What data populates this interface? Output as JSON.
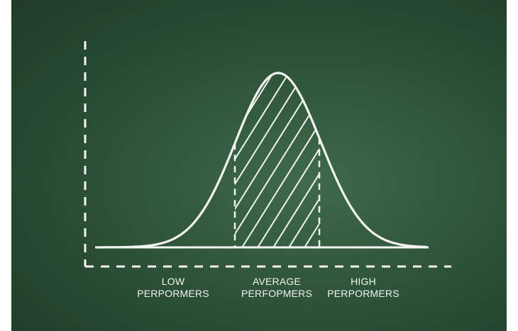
{
  "diagram": {
    "labels": {
      "low": {
        "line1": "LOW",
        "line2": "PERPORMERS"
      },
      "average": {
        "line1": "AVERAGE",
        "line2": "PERFOPMERS"
      },
      "high": {
        "line1": "HIGH",
        "line2": "PERPORMERS"
      }
    },
    "colors": {
      "chalk": "#f3f6f0",
      "board": "#2e5339"
    }
  }
}
